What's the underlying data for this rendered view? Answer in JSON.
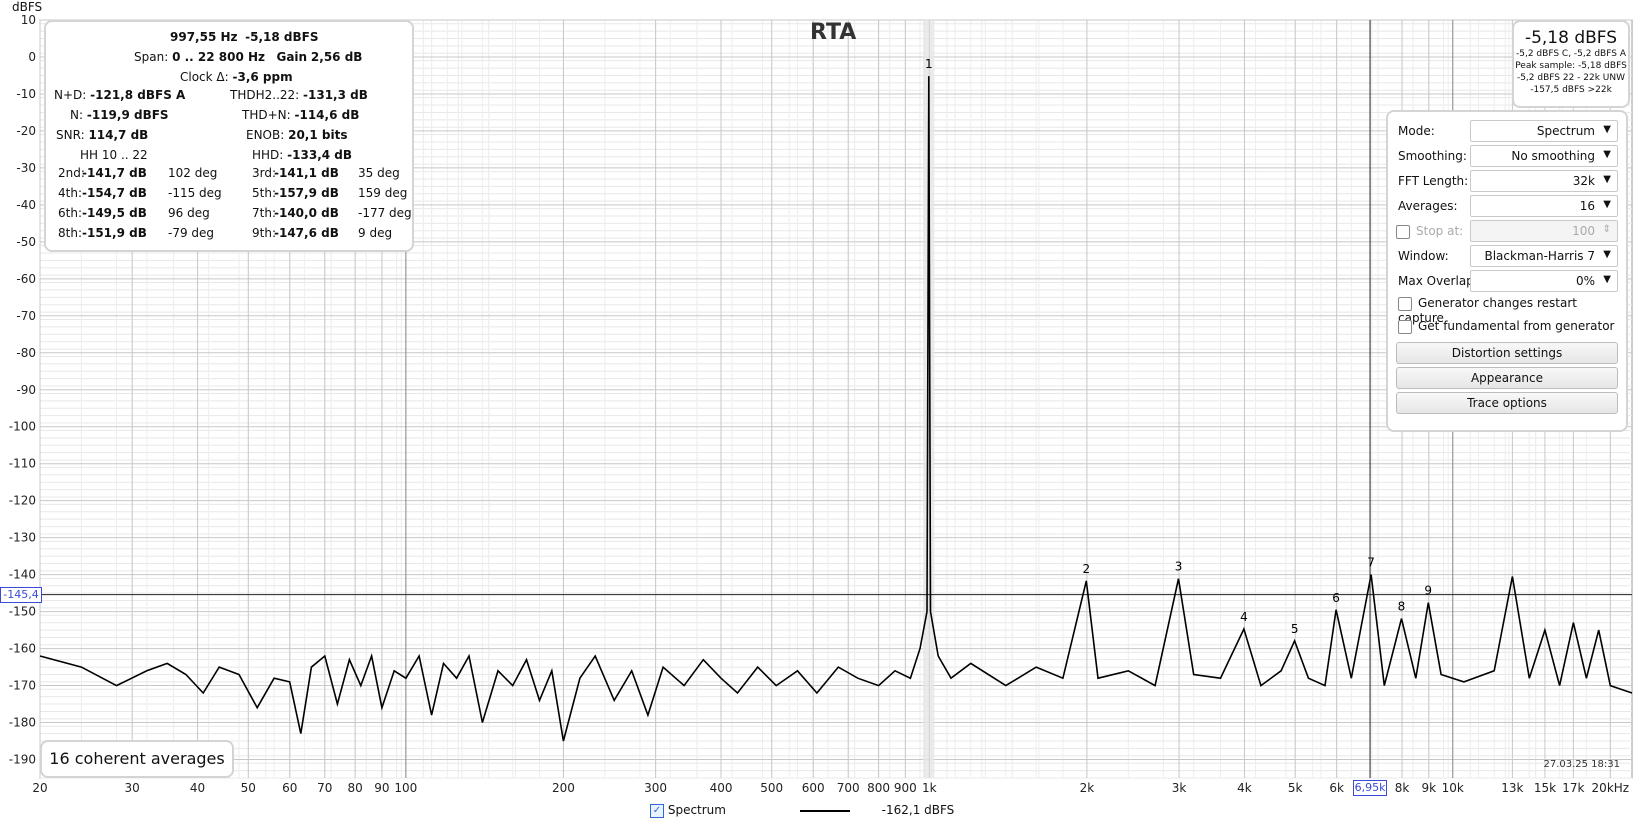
{
  "title": "RTA",
  "y_unit": "dBFS",
  "timestamp": "27.03.25 18:31",
  "averages_label": "16 coherent averages",
  "cursor": {
    "y_value": "-145,4",
    "x_value": "6,95k"
  },
  "legend": {
    "name": "Spectrum",
    "value": "-162,1 dBFS"
  },
  "peak": {
    "value": "-5,18 dBFS",
    "lines": [
      "-5,2 dBFS C, -5,2 dBFS A",
      "Peak sample: -5,18 dBFS",
      "-5,2 dBFS 22 - 22k UNW",
      "-157,5 dBFS >22k"
    ]
  },
  "measurements": {
    "freq": "997,55 Hz",
    "level": "-5,18 dBFS",
    "span_label": "Span:",
    "span": "0 .. 22 800 Hz",
    "gain_label": "Gain",
    "gain": "2,56 dB",
    "clock_label": "Clock Δ:",
    "clock": "-3,6 ppm",
    "nd_label": "N+D:",
    "nd": "-121,8 dBFS A",
    "thd_label": "THDH2..22:",
    "thd": "-131,3 dB",
    "n_label": "N:",
    "n": "-119,9 dBFS",
    "thdn_label": "THD+N:",
    "thdn": "-114,6 dB",
    "snr_label": "SNR:",
    "snr": "114,7 dB",
    "enob_label": "ENOB:",
    "enob": "20,1 bits",
    "hh_label": "HH 10 .. 22",
    "hhd_label": "HHD:",
    "hhd": "-133,4 dB",
    "harmonics": [
      {
        "l": "2nd:",
        "v": "-141,7 dB",
        "p": "102 deg",
        "l2": "3rd:",
        "v2": "-141,1 dB",
        "p2": "35 deg"
      },
      {
        "l": "4th:",
        "v": "-154,7 dB",
        "p": "-115 deg",
        "l2": "5th:",
        "v2": "-157,9 dB",
        "p2": "159 deg"
      },
      {
        "l": "6th:",
        "v": "-149,5 dB",
        "p": "96 deg",
        "l2": "7th:",
        "v2": "-140,0 dB",
        "p2": "-177 deg"
      },
      {
        "l": "8th:",
        "v": "-151,9 dB",
        "p": "-79 deg",
        "l2": "9th:",
        "v2": "-147,6 dB",
        "p2": "9 deg"
      }
    ]
  },
  "controls": {
    "mode": {
      "label": "Mode:",
      "value": "Spectrum"
    },
    "smoothing": {
      "label": "Smoothing:",
      "value": "No smoothing"
    },
    "fft": {
      "label": "FFT Length:",
      "value": "32k"
    },
    "averages": {
      "label": "Averages:",
      "value": "16"
    },
    "stop": {
      "label": "Stop at:",
      "value": "100"
    },
    "window": {
      "label": "Window:",
      "value": "Blackman-Harris 7"
    },
    "overlap": {
      "label": "Max Overlap:",
      "value": "0%"
    },
    "gen_restart": "Generator changes restart capture",
    "get_fund": "Get fundamental from generator",
    "btn_distortion": "Distortion settings",
    "btn_appearance": "Appearance",
    "btn_trace": "Trace options"
  },
  "chart_data": {
    "type": "line",
    "x_scale": "log",
    "xlim": [
      20,
      22000
    ],
    "ylim": [
      -195,
      10
    ],
    "grid": true,
    "ytick_labels": [
      "10",
      "0",
      "-10",
      "-20",
      "-30",
      "-40",
      "-50",
      "-60",
      "-70",
      "-80",
      "-90",
      "-100",
      "-110",
      "-120",
      "-130",
      "-140",
      "-150",
      "-160",
      "-170",
      "-180",
      "-190"
    ],
    "yticks": [
      10,
      0,
      -10,
      -20,
      -30,
      -40,
      -50,
      -60,
      -70,
      -80,
      -90,
      -100,
      -110,
      -120,
      -130,
      -140,
      -150,
      -160,
      -170,
      -180,
      -190
    ],
    "xticks": [
      20,
      30,
      40,
      50,
      60,
      70,
      80,
      90,
      100,
      200,
      300,
      400,
      500,
      600,
      700,
      800,
      900,
      1000,
      2000,
      3000,
      4000,
      5000,
      6000,
      8000,
      9000,
      10000,
      13000,
      15000,
      17000,
      20000
    ],
    "xtick_labels": [
      "20",
      "30",
      "40",
      "50",
      "60",
      "70",
      "80",
      "90",
      "100",
      "200",
      "300",
      "400",
      "500",
      "600",
      "700",
      "800",
      "900",
      "1k",
      "2k",
      "3k",
      "4k",
      "5k",
      "6k",
      "8k",
      "9k",
      "10k",
      "13k",
      "15k",
      "17k",
      "20kHz"
    ],
    "series": [
      {
        "values_description_only": "",
        "x": [
          20,
          24,
          28,
          32,
          35,
          38,
          41,
          44,
          48,
          52,
          56,
          60,
          63,
          66,
          70,
          74,
          78,
          82,
          86,
          90,
          95,
          100,
          106,
          112,
          118,
          125,
          132,
          140,
          150,
          160,
          170,
          180,
          190,
          200,
          215,
          230,
          250,
          270,
          290,
          310,
          340,
          370,
          400,
          430,
          470,
          510,
          560,
          610,
          670,
          730,
          800,
          860,
          920,
          960,
          990,
          997.55,
          1005,
          1040,
          1100,
          1200,
          1400,
          1600,
          1800,
          1995,
          2100,
          2400,
          2700,
          2993,
          3200,
          3600,
          3990,
          4300,
          4700,
          4988,
          5300,
          5700,
          5985,
          6400,
          6983,
          7400,
          7980,
          8500,
          8978,
          9500,
          10500,
          12000,
          13000,
          14000,
          15000,
          16000,
          17000,
          18000,
          19000,
          20000,
          22000
        ],
        "y": [
          -162,
          -165,
          -170,
          -166,
          -164,
          -167,
          -172,
          -165,
          -167,
          -176,
          -168,
          -169,
          -183,
          -165,
          -162,
          -175,
          -163,
          -170,
          -162,
          -176,
          -166,
          -168,
          -162,
          -178,
          -164,
          -168,
          -162,
          -180,
          -166,
          -170,
          -163,
          -174,
          -166,
          -185,
          -168,
          -162,
          -174,
          -166,
          -178,
          -165,
          -170,
          -163,
          -168,
          -172,
          -165,
          -170,
          -166,
          -172,
          -165,
          -168,
          -170,
          -166,
          -168,
          -160,
          -150,
          -5.18,
          -150,
          -162,
          -168,
          -164,
          -170,
          -165,
          -168,
          -141.7,
          -168,
          -166,
          -170,
          -141.1,
          -167,
          -168,
          -154.7,
          -170,
          -166,
          -157.9,
          -168,
          -170,
          -149.5,
          -168,
          -140.0,
          -170,
          -151.9,
          -168,
          -147.6,
          -167,
          -169,
          -166,
          -140.5,
          -168,
          -155,
          -170,
          -153,
          -168,
          -155,
          -170,
          -172
        ]
      }
    ],
    "harmonic_markers": [
      {
        "label": "1",
        "x": 997.55,
        "y": -5.18
      },
      {
        "label": "2",
        "x": 1995,
        "y": -141.7
      },
      {
        "label": "3",
        "x": 2993,
        "y": -141.1
      },
      {
        "label": "4",
        "x": 3990,
        "y": -154.7
      },
      {
        "label": "5",
        "x": 4988,
        "y": -157.9
      },
      {
        "label": "6",
        "x": 5985,
        "y": -149.5
      },
      {
        "label": "7",
        "x": 6983,
        "y": -140.0
      },
      {
        "label": "8",
        "x": 7980,
        "y": -151.9
      },
      {
        "label": "9",
        "x": 8978,
        "y": -147.6
      }
    ],
    "cursor_y": -145.4,
    "cursor_x": 6950
  }
}
